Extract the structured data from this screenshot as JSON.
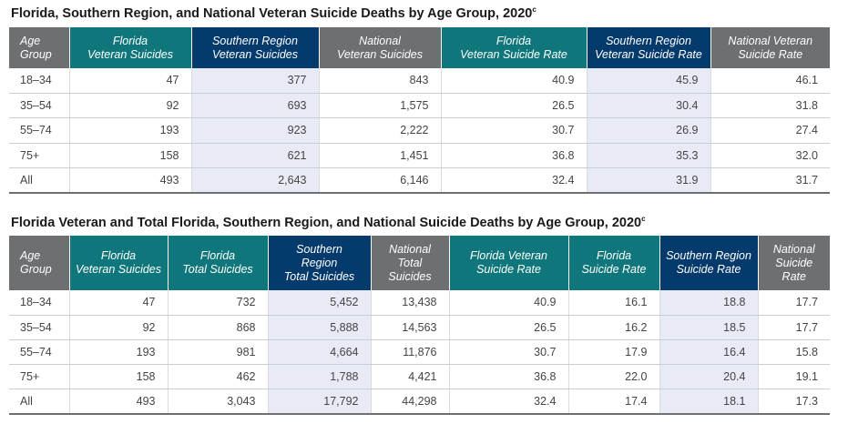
{
  "table1": {
    "title": "Florida, Southern Region, and National Veteran Suicide Deaths by Age Group, 2020",
    "title_sup": "c",
    "headers": [
      [
        "Age",
        "Group"
      ],
      [
        "Florida",
        "Veteran Suicides"
      ],
      [
        "Southern Region",
        "Veteran Suicides"
      ],
      [
        "National",
        "Veteran Suicides"
      ],
      [
        "Florida",
        "Veteran Suicide Rate"
      ],
      [
        "Southern Region",
        "Veteran Suicide Rate"
      ],
      [
        "National Veteran",
        "Suicide Rate"
      ]
    ],
    "rows": [
      [
        "18–34",
        "47",
        "377",
        "843",
        "40.9",
        "45.9",
        "46.1"
      ],
      [
        "35–54",
        "92",
        "693",
        "1,575",
        "26.5",
        "30.4",
        "31.8"
      ],
      [
        "55–74",
        "193",
        "923",
        "2,222",
        "30.7",
        "26.9",
        "27.4"
      ],
      [
        "75+",
        "158",
        "621",
        "1,451",
        "36.8",
        "35.3",
        "32.0"
      ],
      [
        "All",
        "493",
        "2,643",
        "6,146",
        "32.4",
        "31.9",
        "31.7"
      ]
    ]
  },
  "table2": {
    "title": "Florida Veteran and Total Florida, Southern Region, and National Suicide Deaths by Age Group, 2020",
    "title_sup": "c",
    "headers": [
      [
        "Age",
        "Group"
      ],
      [
        "Florida",
        "Veteran Suicides"
      ],
      [
        "Florida",
        "Total Suicides"
      ],
      [
        "Southern",
        "Region",
        "Total Suicides"
      ],
      [
        "National",
        "Total Suicides"
      ],
      [
        "Florida Veteran",
        "Suicide Rate"
      ],
      [
        "Florida",
        "Suicide Rate"
      ],
      [
        "Southern Region",
        "Suicide Rate"
      ],
      [
        "National",
        "Suicide Rate"
      ]
    ],
    "rows": [
      [
        "18–34",
        "47",
        "732",
        "5,452",
        "13,438",
        "40.9",
        "16.1",
        "18.8",
        "17.7"
      ],
      [
        "35–54",
        "92",
        "868",
        "5,888",
        "14,563",
        "26.5",
        "16.2",
        "18.5",
        "17.7"
      ],
      [
        "55–74",
        "193",
        "981",
        "4,664",
        "11,876",
        "30.7",
        "17.9",
        "16.4",
        "15.8"
      ],
      [
        "75+",
        "158",
        "462",
        "1,788",
        "4,421",
        "36.8",
        "22.0",
        "20.4",
        "19.1"
      ],
      [
        "All",
        "493",
        "3,043",
        "17,792",
        "44,298",
        "32.4",
        "17.4",
        "18.1",
        "17.3"
      ]
    ]
  },
  "colors": {
    "gray_header": "#6e6f71",
    "teal_header": "#0f777b",
    "navy_header": "#053a6d",
    "shaded_column": "#e8ebf6"
  }
}
